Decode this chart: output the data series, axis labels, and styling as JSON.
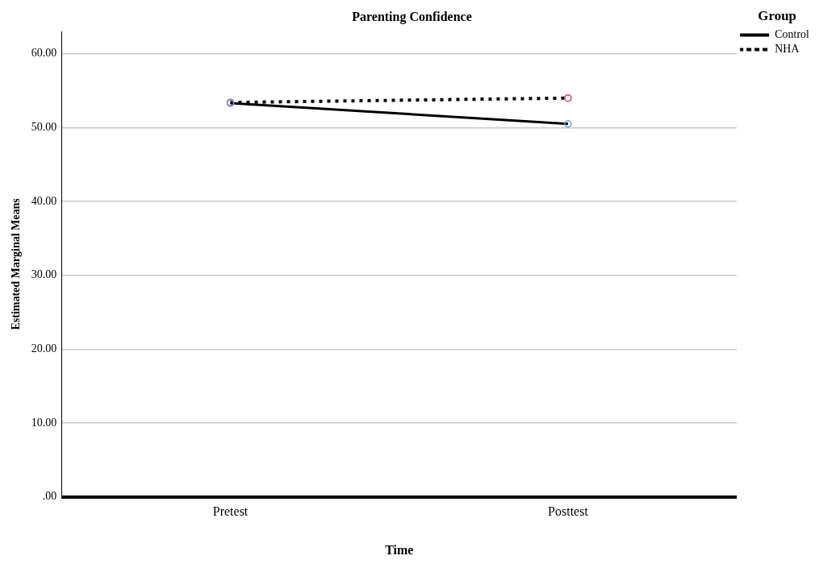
{
  "chart_data": {
    "type": "line",
    "title": "Parenting Confidence",
    "xlabel": "Time",
    "ylabel": "Estimated Marginal Means",
    "legend_title": "Group",
    "categories": [
      "Pretest",
      "Posttest"
    ],
    "series": [
      {
        "name": "Control",
        "color": "#000000",
        "colors": [
          "#6fa0e0",
          "#6fa0e0"
        ],
        "values": [
          53.3,
          50.5
        ],
        "line_style": "solid"
      },
      {
        "name": "NHA",
        "color": "#000000",
        "colors": [
          "#e0325a",
          "#e0325a"
        ],
        "values": [
          53.4,
          54.0
        ],
        "line_style": "dotted"
      }
    ],
    "ylim": [
      0,
      63
    ],
    "yticks": [
      {
        "value": 0,
        "label": ".00"
      },
      {
        "value": 10,
        "label": "10.00"
      },
      {
        "value": 20,
        "label": "20.00"
      },
      {
        "value": 30,
        "label": "30.00"
      },
      {
        "value": 40,
        "label": "40.00"
      },
      {
        "value": 50,
        "label": "50.00"
      },
      {
        "value": 60,
        "label": "60.00"
      }
    ],
    "grid": "y",
    "legend": "top right",
    "marker": "circle"
  }
}
